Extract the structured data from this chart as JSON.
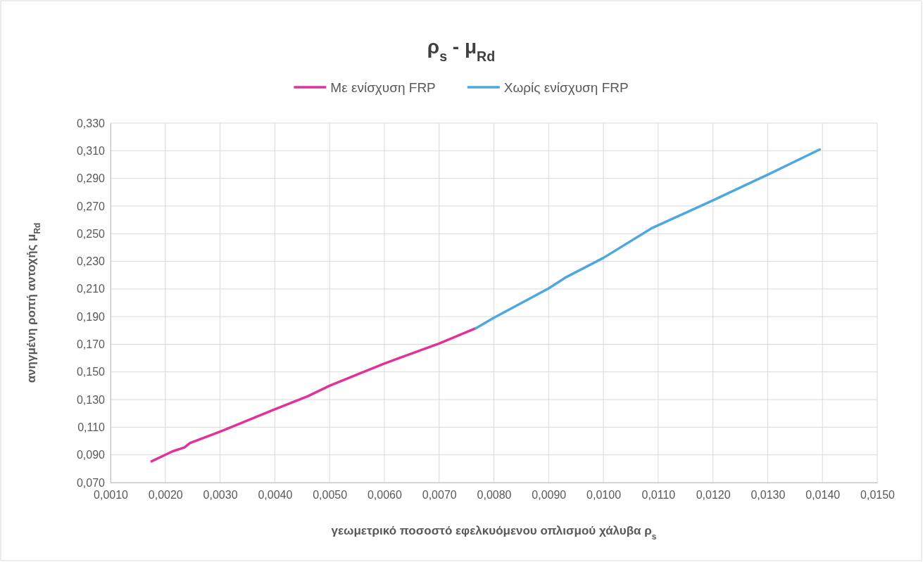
{
  "chart_data": {
    "type": "line",
    "title": "ρ$_{s}$ - μ$_{Rd}$",
    "xlabel": "γεωμετρικό ποσοστό εφελκυόμενου οπλισμού χάλυβα ρ$_{s}$",
    "ylabel": "ανηγμένη ροπή αντοχής μ$_{Rd}$",
    "series": [
      {
        "name": "Με ενίσχυση FRP",
        "color": "#e0339a",
        "x": [
          0.00175,
          0.00213,
          0.00235,
          0.00245,
          0.00301,
          0.004,
          0.0046,
          0.005,
          0.006,
          0.007,
          0.00767
        ],
        "values": [
          0.0853,
          0.0925,
          0.0954,
          0.0985,
          0.107,
          0.123,
          0.1324,
          0.14,
          0.1561,
          0.1706,
          0.1816
        ]
      },
      {
        "name": "Χωρίς ενίσχυση FRP",
        "color": "#4fa8dd",
        "x": [
          0.00767,
          0.008,
          0.009,
          0.0093,
          0.01,
          0.01087,
          0.012,
          0.013,
          0.01395
        ],
        "values": [
          0.1816,
          0.1892,
          0.2104,
          0.2181,
          0.2325,
          0.2537,
          0.2741,
          0.2927,
          0.3109
        ]
      }
    ],
    "xlim": [
      0.001,
      0.015
    ],
    "xticks": [
      {
        "value": 0.001,
        "label": "0,0010"
      },
      {
        "value": 0.002,
        "label": "0,0020"
      },
      {
        "value": 0.003,
        "label": "0,0030"
      },
      {
        "value": 0.004,
        "label": "0,0040"
      },
      {
        "value": 0.005,
        "label": "0,0050"
      },
      {
        "value": 0.006,
        "label": "0,0060"
      },
      {
        "value": 0.007,
        "label": "0,0070"
      },
      {
        "value": 0.008,
        "label": "0,0080"
      },
      {
        "value": 0.009,
        "label": "0,0090"
      },
      {
        "value": 0.01,
        "label": "0,0100"
      },
      {
        "value": 0.011,
        "label": "0,0110"
      },
      {
        "value": 0.012,
        "label": "0,0120"
      },
      {
        "value": 0.013,
        "label": "0,0130"
      },
      {
        "value": 0.014,
        "label": "0,0140"
      },
      {
        "value": 0.015,
        "label": "0,0150"
      }
    ],
    "ylim": [
      0.07,
      0.33
    ],
    "yticks": [
      {
        "value": 0.07,
        "label": "0,070"
      },
      {
        "value": 0.09,
        "label": "0,090"
      },
      {
        "value": 0.11,
        "label": "0,110"
      },
      {
        "value": 0.13,
        "label": "0,130"
      },
      {
        "value": 0.15,
        "label": "0,150"
      },
      {
        "value": 0.17,
        "label": "0,170"
      },
      {
        "value": 0.19,
        "label": "0,190"
      },
      {
        "value": 0.21,
        "label": "0,210"
      },
      {
        "value": 0.23,
        "label": "0,230"
      },
      {
        "value": 0.25,
        "label": "0,250"
      },
      {
        "value": 0.27,
        "label": "0,270"
      },
      {
        "value": 0.29,
        "label": "0,290"
      },
      {
        "value": 0.31,
        "label": "0,310"
      },
      {
        "value": 0.33,
        "label": "0,330"
      }
    ],
    "grid": true,
    "legend": "top",
    "marker": "none",
    "line_style": "solid"
  }
}
